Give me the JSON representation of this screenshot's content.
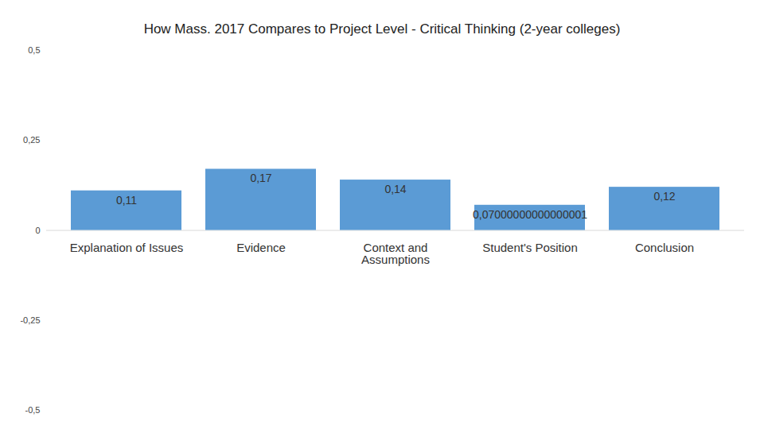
{
  "chart_data": {
    "type": "bar",
    "title": "How Mass. 2017 Compares to Project Level - Critical Thinking (2-year colleges)",
    "categories": [
      "Explanation of Issues",
      "Evidence",
      "Context and Assumptions",
      "Student's Position",
      "Conclusion"
    ],
    "values": [
      0.11,
      0.17,
      0.14,
      0.07,
      0.12
    ],
    "value_labels": [
      "0,11",
      "0,17",
      "0,14",
      "0,07000000000000001",
      "0,12"
    ],
    "color": "#5b9bd5",
    "ylim": [
      -0.5,
      0.5
    ],
    "yticks": [
      {
        "value": -0.5,
        "label": "-0,5"
      },
      {
        "value": -0.25,
        "label": "-0,25"
      },
      0,
      {
        "value": 0.25,
        "label": "0,25"
      },
      {
        "value": 0.5,
        "label": "0,5"
      }
    ],
    "grid": false,
    "data_labels": true
  }
}
